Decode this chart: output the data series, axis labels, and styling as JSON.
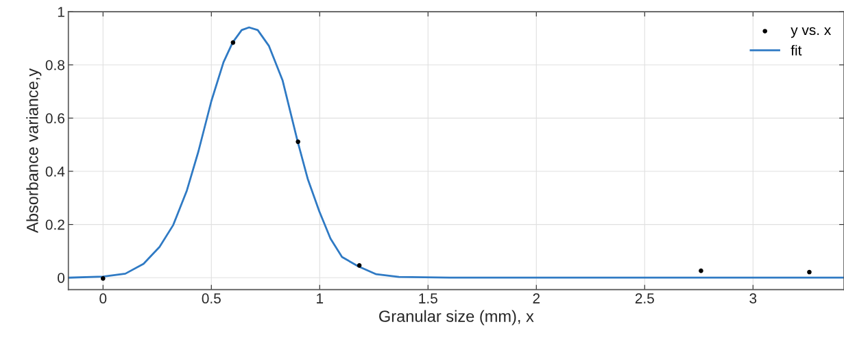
{
  "chart_data": {
    "type": "scatter",
    "xlabel": "Granular size (mm), x",
    "ylabel": "Absorbance variance,y",
    "xlim": [
      -0.16,
      3.42
    ],
    "ylim": [
      -0.045,
      1
    ],
    "xticks": [
      0,
      0.5,
      1,
      1.5,
      2,
      2.5,
      3
    ],
    "yticks": [
      0,
      {
        "value": 0.2,
        "label": "0.2"
      },
      {
        "value": 0.4,
        "label": "0.4"
      },
      {
        "value": 0.6,
        "label": "0.6"
      },
      {
        "value": 0.8,
        "label": "0.8"
      },
      1
    ],
    "grid": true,
    "legend": "top right",
    "series": [
      {
        "name": "y vs. x",
        "color": "#000000",
        "marker": "circle",
        "x": [
          0,
          0.6,
          0.9,
          1.183,
          2.76,
          3.26
        ],
        "values": [
          -0.003,
          0.884,
          0.511,
          0.046,
          0.026,
          0.021
        ]
      },
      {
        "name": "fit",
        "type": "line",
        "color": "#2f7ac4",
        "marker": "none",
        "line_style": "solid",
        "x": [
          -0.16,
          0,
          0.103,
          0.187,
          0.261,
          0.324,
          0.387,
          0.44,
          0.5,
          0.556,
          0.598,
          0.64,
          0.674,
          0.714,
          0.766,
          0.829,
          0.898,
          0.945,
          0.998,
          1.05,
          1.103,
          1.177,
          1.261,
          1.366,
          1.6,
          3.42
        ],
        "values": [
          0.0,
          0.004,
          0.015,
          0.052,
          0.116,
          0.198,
          0.328,
          0.474,
          0.664,
          0.81,
          0.884,
          0.931,
          0.941,
          0.931,
          0.871,
          0.741,
          0.513,
          0.371,
          0.25,
          0.147,
          0.078,
          0.043,
          0.013,
          0.003,
          0.0,
          0.0
        ]
      }
    ]
  }
}
